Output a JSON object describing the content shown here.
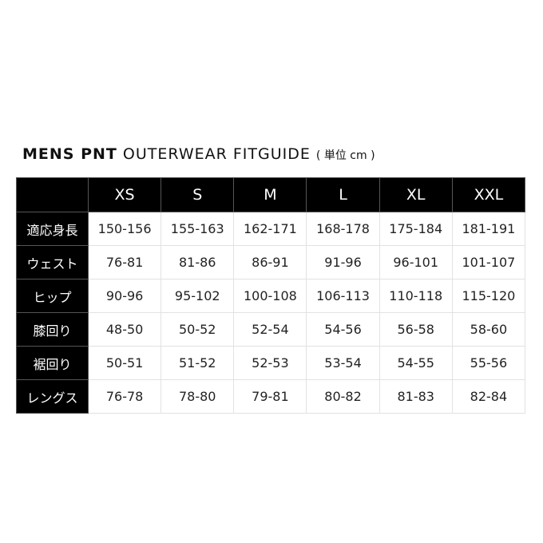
{
  "title": {
    "bold": "MENS PNT",
    "rest": "OUTERWEAR FITGUIDE",
    "unit": "( 単位 cm )"
  },
  "table": {
    "sizes": [
      "XS",
      "S",
      "M",
      "L",
      "XL",
      "XXL"
    ],
    "rows": [
      {
        "label": "適応身長",
        "values": [
          "150-156",
          "155-163",
          "162-171",
          "168-178",
          "175-184",
          "181-191"
        ]
      },
      {
        "label": "ウェスト",
        "values": [
          "76-81",
          "81-86",
          "86-91",
          "91-96",
          "96-101",
          "101-107"
        ]
      },
      {
        "label": "ヒップ",
        "values": [
          "90-96",
          "95-102",
          "100-108",
          "106-113",
          "110-118",
          "115-120"
        ]
      },
      {
        "label": "膝回り",
        "values": [
          "48-50",
          "50-52",
          "52-54",
          "54-56",
          "56-58",
          "58-60"
        ]
      },
      {
        "label": "裾回り",
        "values": [
          "50-51",
          "51-52",
          "52-53",
          "53-54",
          "54-55",
          "55-56"
        ]
      },
      {
        "label": "レングス",
        "values": [
          "76-78",
          "78-80",
          "79-81",
          "80-82",
          "81-83",
          "82-84"
        ]
      }
    ]
  }
}
